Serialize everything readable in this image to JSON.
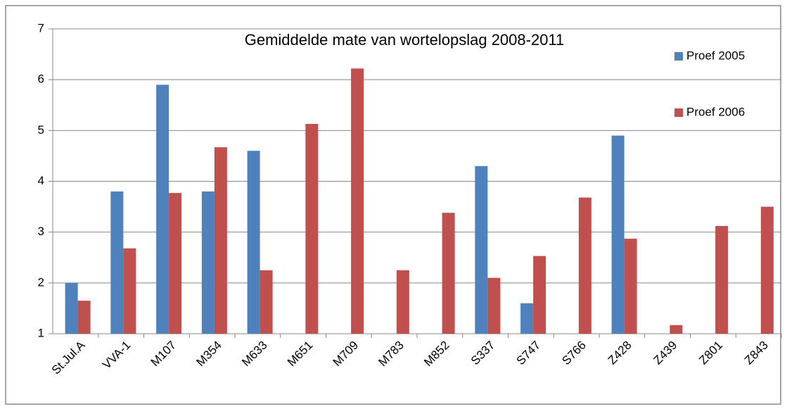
{
  "chart_data": {
    "type": "bar",
    "title": "Gemiddelde mate van wortelopslag 2008-2011",
    "categories": [
      "St.Jul.A",
      "VVA-1",
      "M107",
      "M354",
      "M633",
      "M651",
      "M709",
      "M783",
      "M852",
      "S337",
      "S747",
      "S766",
      "Z428",
      "Z439",
      "Z801",
      "Z843"
    ],
    "series": [
      {
        "name": "Proef 2005",
        "color": "#4f81bd",
        "values": [
          2.0,
          3.8,
          5.9,
          3.8,
          4.6,
          null,
          null,
          null,
          null,
          4.3,
          1.6,
          null,
          4.9,
          null,
          null,
          null
        ]
      },
      {
        "name": "Proef 2006",
        "color": "#c0504d",
        "values": [
          1.65,
          2.68,
          3.77,
          4.67,
          2.25,
          5.13,
          6.22,
          2.25,
          3.38,
          2.1,
          2.53,
          3.68,
          2.87,
          1.17,
          3.12,
          3.5
        ]
      }
    ],
    "ylim": [
      1,
      7
    ],
    "yticks": [
      1,
      2,
      3,
      4,
      5,
      6,
      7
    ],
    "grid": true,
    "legend": "top-right"
  }
}
